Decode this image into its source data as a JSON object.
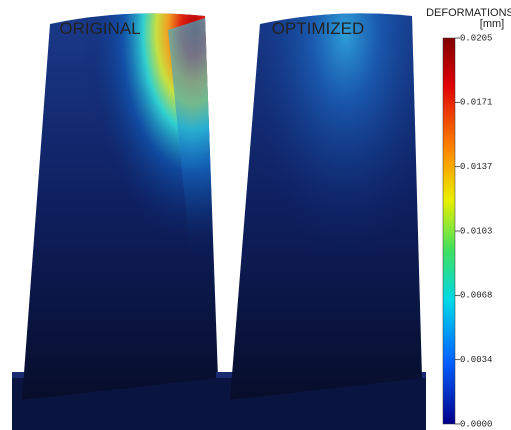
{
  "panels": [
    {
      "label": "ORIGINAL"
    },
    {
      "label": "OPTIMIZED"
    }
  ],
  "colorbar": {
    "title": "DEFORMATIONS",
    "unit": "[mm]",
    "ticks": [
      "0.0205",
      "0.0171",
      "0.0137",
      "0.0103",
      "0.0068",
      "0.0034",
      "0.0000"
    ]
  }
}
